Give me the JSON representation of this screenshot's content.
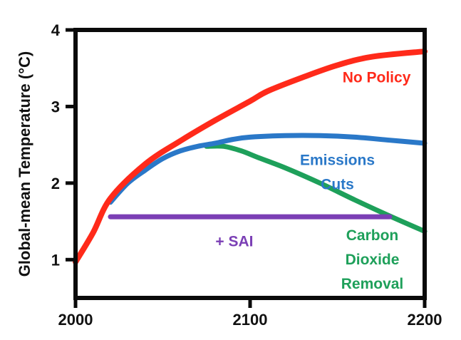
{
  "chart_data": {
    "type": "line",
    "title": "",
    "xlabel": "",
    "ylabel": "Global-mean Temperature (°C)",
    "xlim": [
      2000,
      2200
    ],
    "ylim": [
      0.5,
      4
    ],
    "x_ticks": [
      {
        "value": 2000,
        "label": "2000"
      },
      {
        "value": 2100,
        "label": "2100"
      },
      {
        "value": 2200,
        "label": "2200"
      }
    ],
    "y_ticks": [
      {
        "value": 1,
        "label": "1"
      },
      {
        "value": 2,
        "label": "2"
      },
      {
        "value": 3,
        "label": "3"
      },
      {
        "value": 4,
        "label": "4"
      }
    ],
    "series": [
      {
        "key": "no-policy",
        "name": "No Policy",
        "label_lines": [
          "No Policy"
        ],
        "color": "#ff2a1a",
        "x": [
          2000,
          2010,
          2020,
          2040,
          2060,
          2080,
          2100,
          2110,
          2130,
          2150,
          2170,
          2200
        ],
        "y": [
          0.97,
          1.35,
          1.8,
          2.25,
          2.55,
          2.82,
          3.07,
          3.2,
          3.38,
          3.54,
          3.65,
          3.72
        ]
      },
      {
        "key": "emissions-cuts",
        "name": "Emissions Cuts",
        "label_lines": [
          "Emissions",
          "Cuts"
        ],
        "color": "#2a78c8",
        "x": [
          2020,
          2030,
          2040,
          2050,
          2060,
          2070,
          2080,
          2090,
          2100,
          2120,
          2140,
          2160,
          2180,
          2200
        ],
        "y": [
          1.75,
          2.0,
          2.17,
          2.32,
          2.42,
          2.48,
          2.52,
          2.57,
          2.6,
          2.62,
          2.62,
          2.6,
          2.56,
          2.52
        ]
      },
      {
        "key": "carbon-dioxide-removal",
        "name": "Carbon Dioxide Removal",
        "label_lines": [
          "Carbon",
          "Dioxide",
          "Removal"
        ],
        "color": "#1ea05a",
        "x": [
          2075,
          2085,
          2095,
          2105,
          2120,
          2140,
          2160,
          2180,
          2200
        ],
        "y": [
          2.48,
          2.48,
          2.42,
          2.33,
          2.2,
          2.0,
          1.78,
          1.57,
          1.37
        ]
      },
      {
        "key": "sai",
        "name": "+ SAI",
        "label_lines": [
          "+ SAI"
        ],
        "color": "#7b3fb5",
        "x": [
          2020,
          2180
        ],
        "y": [
          1.56,
          1.56
        ]
      }
    ]
  }
}
